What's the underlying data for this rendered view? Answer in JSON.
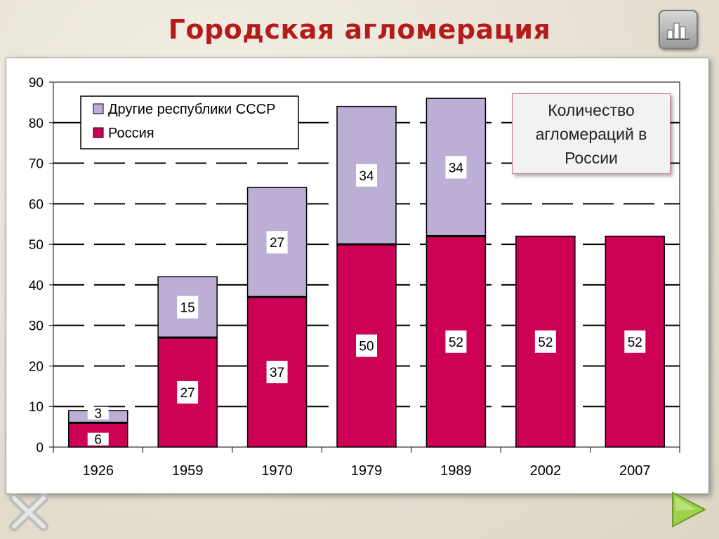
{
  "slide": {
    "title": "Городская агломерация"
  },
  "note": {
    "text": "Количество агломераций в России"
  },
  "nav": {
    "home_icon": "chart-home-icon",
    "close_icon": "close-x-icon",
    "next_icon": "next-arrow-icon"
  },
  "chart_data": {
    "type": "bar",
    "stacked": true,
    "categories": [
      "1926",
      "1959",
      "1970",
      "1979",
      "1989",
      "2002",
      "2007"
    ],
    "series": [
      {
        "name": "Россия",
        "color": "#cc0055",
        "values": [
          6,
          27,
          37,
          50,
          52,
          52,
          52
        ]
      },
      {
        "name": "Другие республики СССР",
        "color": "#bdaed6",
        "values": [
          3,
          15,
          27,
          34,
          34,
          null,
          null
        ]
      }
    ],
    "ylim": [
      0,
      90
    ],
    "yticks": [
      "0",
      "10",
      "20",
      "30",
      "40",
      "50",
      "60",
      "70",
      "80",
      "90"
    ],
    "grid": true,
    "legend_position": "top-left",
    "data_labels": true
  }
}
